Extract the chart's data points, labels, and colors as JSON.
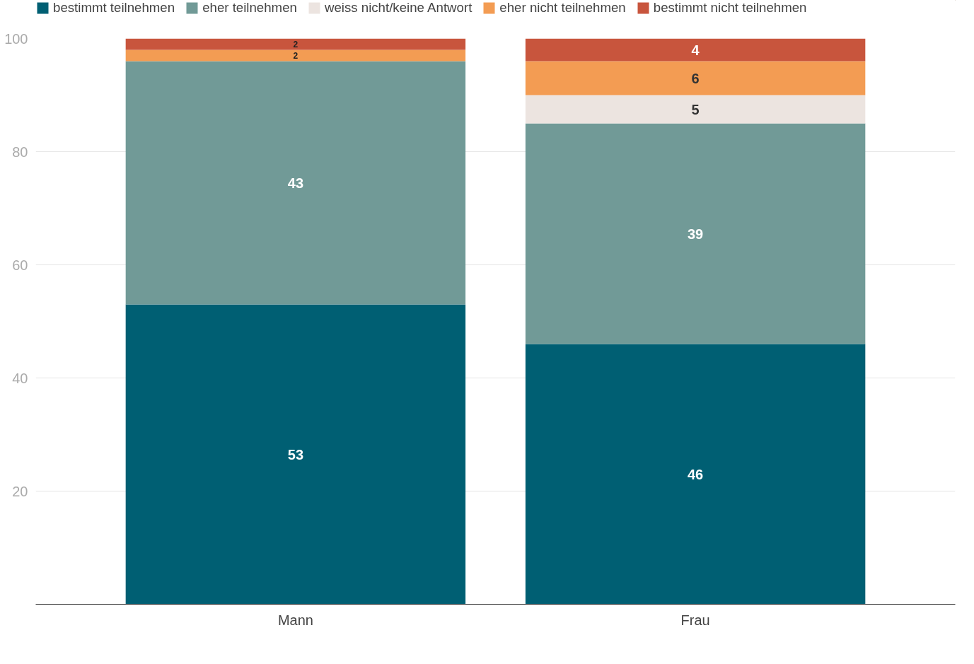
{
  "chart_data": {
    "type": "bar",
    "stacked": true,
    "categories": [
      "Mann",
      "Frau"
    ],
    "series": [
      {
        "name": "bestimmt teilnehmen",
        "color": "#005f73",
        "values": [
          53,
          46
        ]
      },
      {
        "name": "eher teilnehmen",
        "color": "#719a97",
        "values": [
          43,
          39
        ]
      },
      {
        "name": "weiss nicht/keine Antwort",
        "color": "#ece4e0",
        "values": [
          null,
          5
        ]
      },
      {
        "name": "eher nicht teilnehmen",
        "color": "#f39c53",
        "values": [
          2,
          6
        ]
      },
      {
        "name": "bestimmt nicht teilnehmen",
        "color": "#c8553d",
        "values": [
          2,
          4
        ]
      }
    ],
    "ylim": [
      0,
      100
    ],
    "yticks": [
      20,
      40,
      60,
      80,
      100
    ],
    "grid": "y",
    "legend": "top",
    "data_labels": true
  }
}
